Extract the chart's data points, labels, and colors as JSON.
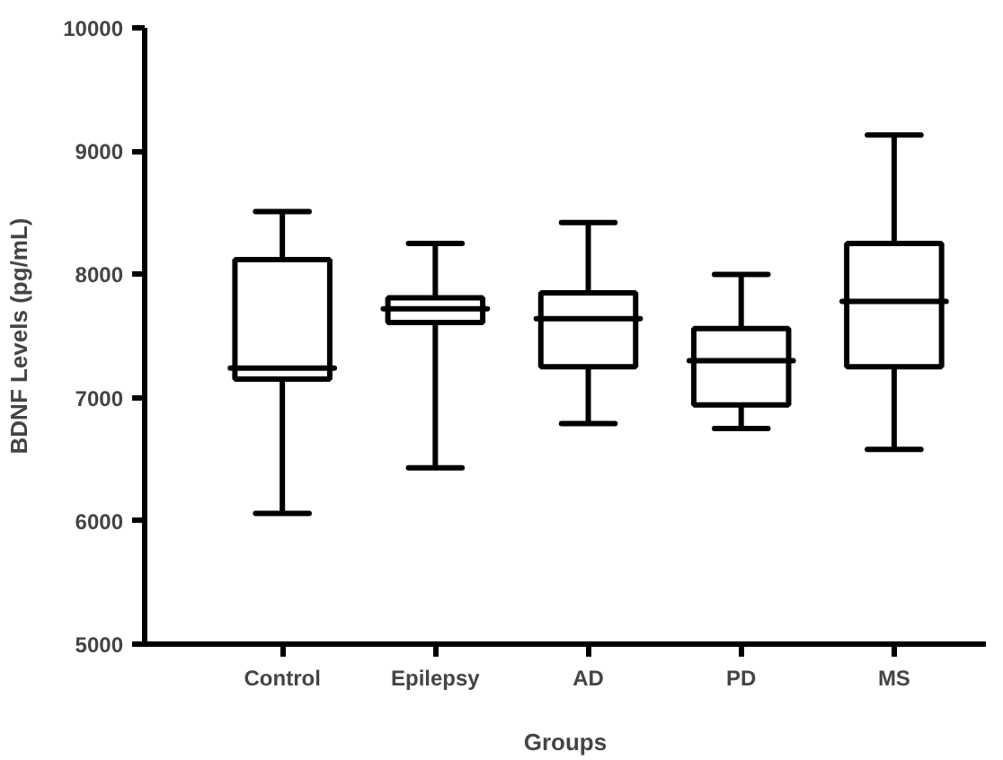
{
  "chart_data": {
    "type": "box",
    "xlabel": "Groups",
    "ylabel": "BDNF Levels (pg/mL)",
    "categories": [
      "Control",
      "Epilepsy",
      "AD",
      "PD",
      "MS"
    ],
    "boxes": [
      {
        "low": 6060,
        "q1": 7150,
        "median": 7240,
        "q3": 8120,
        "high": 8510
      },
      {
        "low": 6430,
        "q1": 7610,
        "median": 7720,
        "q3": 7810,
        "high": 8250
      },
      {
        "low": 6790,
        "q1": 7250,
        "median": 7640,
        "q3": 7850,
        "high": 8420
      },
      {
        "low": 6750,
        "q1": 6940,
        "median": 7300,
        "q3": 7560,
        "high": 8000
      },
      {
        "low": 6580,
        "q1": 7250,
        "median": 7780,
        "q3": 8250,
        "high": 9130
      }
    ],
    "color": "#000000",
    "ylim": [
      5000,
      10000
    ],
    "yticks": [
      5000,
      6000,
      7000,
      8000,
      9000,
      10000
    ],
    "grid": false
  }
}
